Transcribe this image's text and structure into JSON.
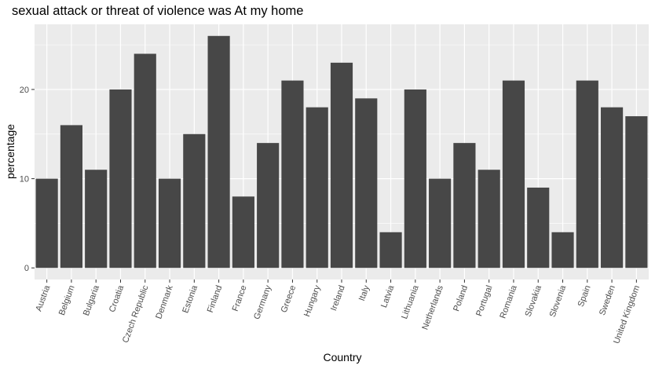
{
  "chart_data": {
    "type": "bar",
    "title": "sexual attack or threat of violence was At my home",
    "xlabel": "Country",
    "ylabel": "percentage",
    "categories": [
      "Austria",
      "Belgium",
      "Bulgaria",
      "Croatia",
      "Czech Republic",
      "Denmark",
      "Estonia",
      "Finland",
      "France",
      "Germany",
      "Greece",
      "Hungary",
      "Ireland",
      "Italy",
      "Latvia",
      "Lithuania",
      "Netherlands",
      "Poland",
      "Portugal",
      "Romania",
      "Slovakia",
      "Slovenia",
      "Spain",
      "Sweden",
      "United Kingdom"
    ],
    "values": [
      10,
      16,
      11,
      20,
      24,
      10,
      15,
      26,
      8,
      14,
      21,
      18,
      23,
      19,
      4,
      20,
      10,
      14,
      11,
      21,
      9,
      4,
      21,
      18,
      17
    ],
    "yticks": [
      0,
      10,
      20
    ],
    "ylim": [
      -1.3,
      27.3
    ],
    "grid": true,
    "colors": {
      "panel": "#ebebeb",
      "grid_major": "#ffffff",
      "bar": "#474747"
    }
  }
}
